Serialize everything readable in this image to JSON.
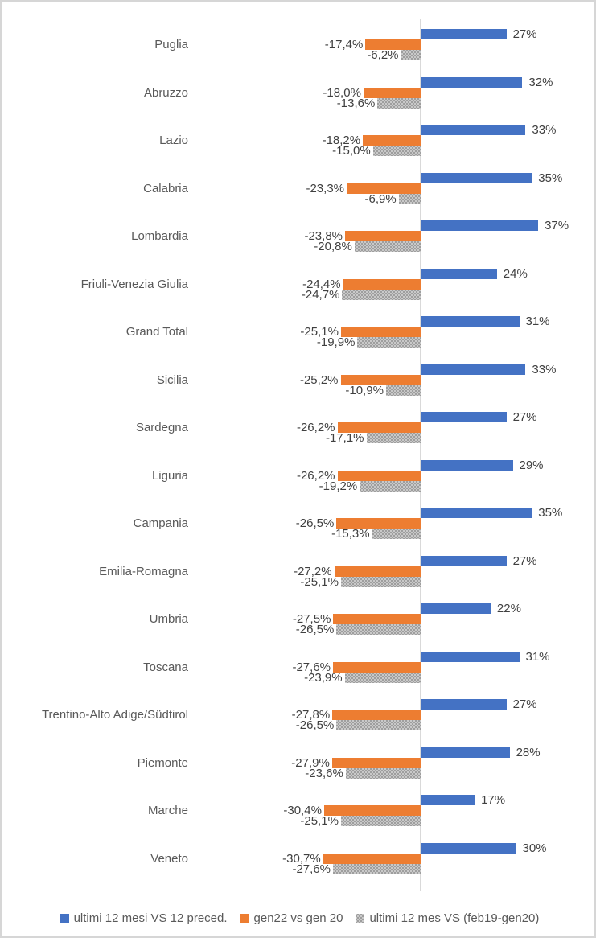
{
  "chart_data": {
    "type": "bar",
    "orientation": "horizontal",
    "title": "",
    "grid": false,
    "legend_position": "bottom",
    "value_axis": {
      "zero_line": true,
      "zero_line_color": "#d9d9d9",
      "approx_range_pct": [
        -35,
        40
      ]
    },
    "categories": [
      "Puglia",
      "Abruzzo",
      "Lazio",
      "Calabria",
      "Lombardia",
      "Friuli-Venezia Giulia",
      "Grand Total",
      "Sicilia",
      "Sardegna",
      "Liguria",
      "Campania",
      "Emilia-Romagna",
      "Umbria",
      "Toscana",
      "Trentino-Alto Adige/Südtirol",
      "Piemonte",
      "Marche",
      "Veneto"
    ],
    "series": [
      {
        "name": "ultimi 12 mesi VS 12 preced.",
        "color": "#4472c4",
        "pattern": "solid",
        "values": [
          27,
          32,
          33,
          35,
          37,
          24,
          31,
          33,
          27,
          29,
          35,
          27,
          22,
          31,
          27,
          28,
          17,
          30
        ],
        "labels": [
          "27%",
          "32%",
          "33%",
          "35%",
          "37%",
          "24%",
          "31%",
          "33%",
          "27%",
          "29%",
          "35%",
          "27%",
          "22%",
          "31%",
          "27%",
          "28%",
          "17%",
          "30%"
        ]
      },
      {
        "name": "gen22 vs gen 20",
        "color": "#ed7d31",
        "pattern": "solid",
        "values": [
          -17.4,
          -18.0,
          -18.2,
          -23.3,
          -23.8,
          -24.4,
          -25.1,
          -25.2,
          -26.2,
          -26.2,
          -26.5,
          -27.2,
          -27.5,
          -27.6,
          -27.8,
          -27.9,
          -30.4,
          -30.7
        ],
        "labels": [
          "-17,4%",
          "-18,0%",
          "-18,2%",
          "-23,3%",
          "-23,8%",
          "-24,4%",
          "-25,1%",
          "-25,2%",
          "-26,2%",
          "-26,2%",
          "-26,5%",
          "-27,2%",
          "-27,5%",
          "-27,6%",
          "-27,8%",
          "-27,9%",
          "-30,4%",
          "-30,7%"
        ]
      },
      {
        "name": "ultimi 12 mes VS (feb19-gen20)",
        "color": "#a6a6a6",
        "pattern": "dotted",
        "values": [
          -6.2,
          -13.6,
          -15.0,
          -6.9,
          -20.8,
          -24.7,
          -19.9,
          -10.9,
          -17.1,
          -19.2,
          -15.3,
          -25.1,
          -26.5,
          -23.9,
          -26.5,
          -23.6,
          -25.1,
          -27.6
        ],
        "labels": [
          "-6,2%",
          "-13,6%",
          "-15,0%",
          "-6,9%",
          "-20,8%",
          "-24,7%",
          "-19,9%",
          "-10,9%",
          "-17,1%",
          "-19,2%",
          "-15,3%",
          "-25,1%",
          "-26,5%",
          "-23,9%",
          "-26,5%",
          "-23,6%",
          "-25,1%",
          "-27,6%"
        ]
      }
    ]
  },
  "colors": {
    "frame_border": "#d6d6d6",
    "axis_line": "#d9d9d9",
    "category_label_text": "#595959",
    "value_label_text": "#404040",
    "legend_text": "#595959"
  }
}
